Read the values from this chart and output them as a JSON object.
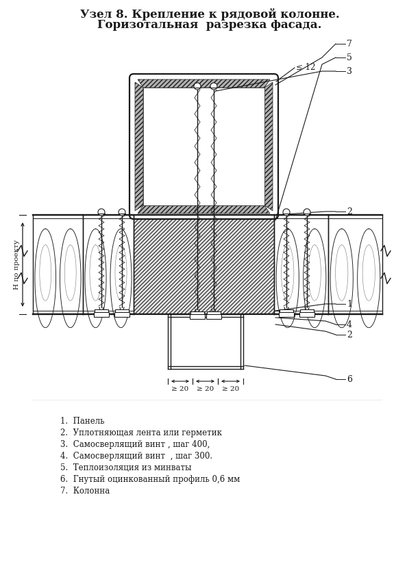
{
  "title_line1": "Узел 8. Крепление к рядовой колонне.",
  "title_line2": "Горизотальная  разрезка фасада.",
  "legend": [
    "1.  Панель",
    "2.  Уплотняющая лента или герметик",
    "3.  Самосверлящий винт , шаг 400,",
    "4.  Самосверлящий винт  , шаг 300.",
    "5.  Теплоизоляция из минваты",
    "6.  Гнутый оцинкованный профиль 0,6 мм",
    "7.  Колонна"
  ],
  "bg_color": "#ffffff",
  "line_color": "#1a1a1a"
}
